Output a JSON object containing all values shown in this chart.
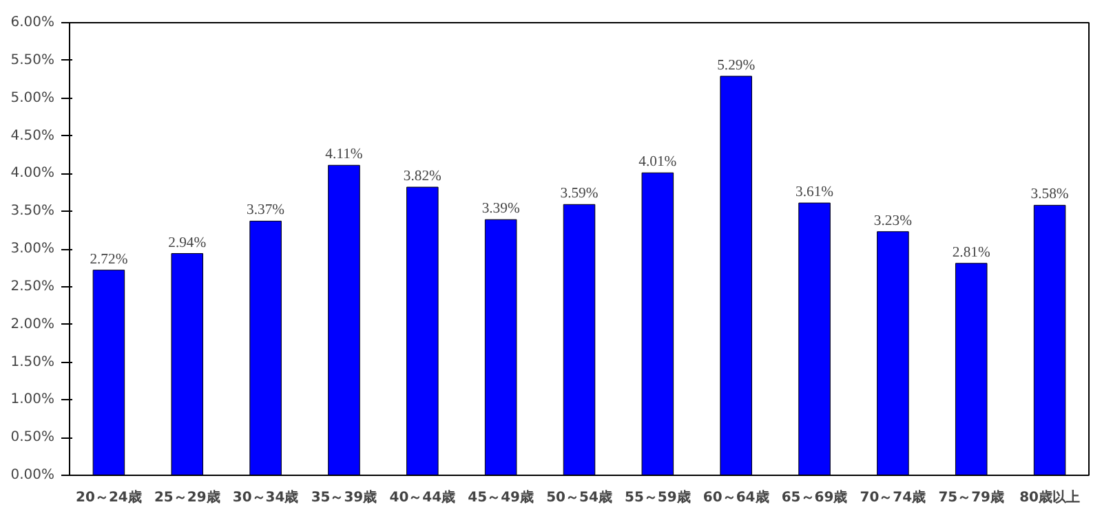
{
  "chart_data": {
    "type": "bar",
    "categories": [
      "20～24歳",
      "25～29歳",
      "30～34歳",
      "35～39歳",
      "40～44歳",
      "45～49歳",
      "50～54歳",
      "55～59歳",
      "60～64歳",
      "65～69歳",
      "70～74歳",
      "75～79歳",
      "80歳以上"
    ],
    "values": [
      2.72,
      2.94,
      3.37,
      4.11,
      3.82,
      3.39,
      3.59,
      4.01,
      5.29,
      3.61,
      3.23,
      2.81,
      3.58
    ],
    "value_labels": [
      "2.72%",
      "2.94%",
      "3.37%",
      "4.11%",
      "3.82%",
      "3.39%",
      "3.59%",
      "4.01%",
      "5.29%",
      "3.61%",
      "3.23%",
      "2.81%",
      "3.58%"
    ],
    "color": "#0000ff",
    "ylim": [
      0,
      6
    ],
    "yticks": [
      {
        "value": 0,
        "label": "0.00%"
      },
      {
        "value": 0.5,
        "label": "0.50%"
      },
      {
        "value": 1,
        "label": "1.00%"
      },
      {
        "value": 1.5,
        "label": "1.50%"
      },
      {
        "value": 2,
        "label": "2.00%"
      },
      {
        "value": 2.5,
        "label": "2.50%"
      },
      {
        "value": 3,
        "label": "3.00%"
      },
      {
        "value": 3.5,
        "label": "3.50%"
      },
      {
        "value": 4,
        "label": "4.00%"
      },
      {
        "value": 4.5,
        "label": "4.50%"
      },
      {
        "value": 5,
        "label": "5.00%"
      },
      {
        "value": 5.5,
        "label": "5.50%"
      },
      {
        "value": 6,
        "label": "6.00%"
      }
    ],
    "grid": false
  }
}
